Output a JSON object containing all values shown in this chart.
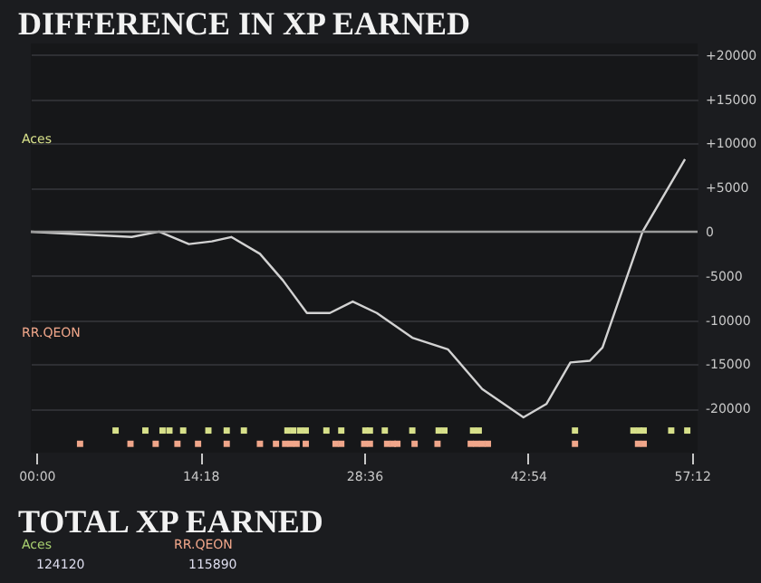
{
  "chart_data": {
    "type": "line",
    "title": "DIFFERENCE IN XP EARNED",
    "xlim": [
      -0.5,
      57.7
    ],
    "ylim": [
      -25000,
      21300
    ],
    "xticks": [
      {
        "value": 0,
        "label": "00:00"
      },
      {
        "value": 14.3,
        "label": "14:18"
      },
      {
        "value": 28.6,
        "label": "28:36"
      },
      {
        "value": 42.9,
        "label": "42:54"
      },
      {
        "value": 57.2,
        "label": "57:12"
      }
    ],
    "yticks": [
      {
        "value": 20000,
        "label": "+20000"
      },
      {
        "value": 15000,
        "label": "+15000"
      },
      {
        "value": 10000,
        "label": "+10000"
      },
      {
        "value": 5000,
        "label": "+5000"
      },
      0,
      -5000,
      -10000,
      -15000,
      -20000
    ],
    "grid": "y",
    "ref_lines": [
      {
        "axis": "y",
        "value": 0,
        "color": "#9a9a9a"
      }
    ],
    "series": [
      {
        "color": "#d2d2d2",
        "x": [
          -0.5,
          8.3,
          10.7,
          13.3,
          15.3,
          17.0,
          19.5,
          21.5,
          23.6,
          25.6,
          27.6,
          29.7,
          32.8,
          35.9,
          38.9,
          42.5,
          44.5,
          46.6,
          48.3,
          49.4,
          52.9,
          56.6
        ],
        "values": [
          0,
          -600,
          0,
          -1400,
          -1100,
          -600,
          -2500,
          -5500,
          -9200,
          -9200,
          -7900,
          -9200,
          -12000,
          -13300,
          -17800,
          -21000,
          -19500,
          -14800,
          -14600,
          -13100,
          0,
          8200
        ]
      },
      {
        "type": "scatter",
        "marker": "square",
        "color": "#d7e08a",
        "x": [
          6.9,
          9.5,
          11.0,
          11.6,
          12.8,
          15.0,
          16.6,
          18.1,
          21.9,
          22.4,
          23.0,
          23.5,
          25.3,
          26.6,
          28.7,
          29.1,
          30.4,
          32.8,
          35.1,
          35.6,
          38.1,
          38.6,
          47.0,
          52.1,
          52.6,
          53.0,
          55.4,
          56.8
        ],
        "values": [
          -22500,
          -22500,
          -22500,
          -22500,
          -22500,
          -22500,
          -22500,
          -22500,
          -22500,
          -22500,
          -22500,
          -22500,
          -22500,
          -22500,
          -22500,
          -22500,
          -22500,
          -22500,
          -22500,
          -22500,
          -22500,
          -22500,
          -22500,
          -22500,
          -22500,
          -22500,
          -22500,
          -22500
        ]
      },
      {
        "type": "scatter",
        "marker": "square",
        "color": "#f0a68a",
        "x": [
          3.8,
          8.2,
          10.4,
          12.3,
          14.1,
          16.6,
          19.5,
          20.9,
          21.7,
          22.2,
          22.7,
          23.5,
          26.1,
          26.6,
          28.6,
          29.1,
          30.6,
          31.1,
          31.5,
          33.0,
          35.0,
          37.9,
          38.4,
          38.9,
          39.4,
          47.0,
          52.5,
          53.0
        ],
        "values": [
          -24000,
          -24000,
          -24000,
          -24000,
          -24000,
          -24000,
          -24000,
          -24000,
          -24000,
          -24000,
          -24000,
          -24000,
          -24000,
          -24000,
          -24000,
          -24000,
          -24000,
          -24000,
          -24000,
          -24000,
          -24000,
          -24000,
          -24000,
          -24000,
          -24000,
          -24000,
          -24000,
          -24000
        ]
      }
    ],
    "annotations": [
      "Aces",
      "RR.QEON",
      "TOTAL XP EARNED",
      "Aces",
      "RR.QEON",
      "124120",
      "115890"
    ]
  }
}
